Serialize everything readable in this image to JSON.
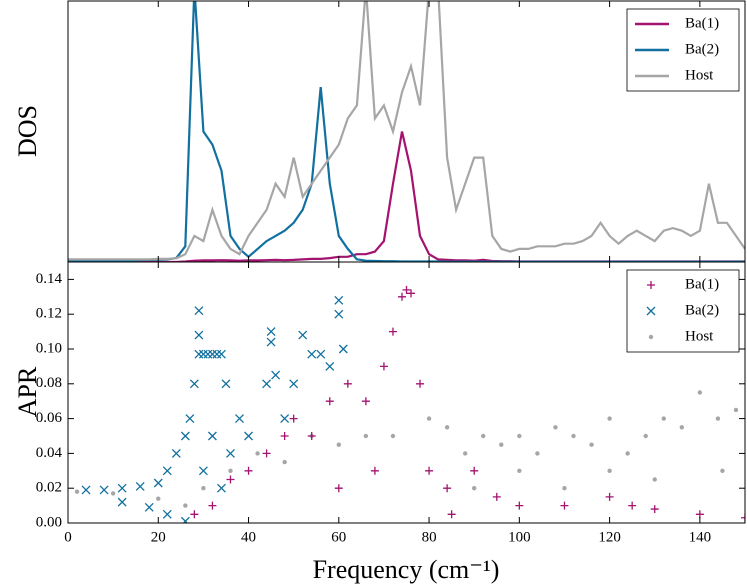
{
  "chart_data": [
    {
      "type": "line",
      "ylabel": "DOS",
      "xlim": [
        0,
        150
      ],
      "ylim": [
        0,
        1
      ],
      "legend": "upper right",
      "x": [
        0,
        2,
        4,
        6,
        8,
        10,
        12,
        14,
        16,
        18,
        20,
        22,
        24,
        26,
        28,
        30,
        32,
        34,
        36,
        38,
        40,
        42,
        44,
        46,
        48,
        50,
        52,
        54,
        56,
        58,
        60,
        62,
        64,
        66,
        68,
        70,
        72,
        74,
        76,
        78,
        80,
        82,
        84,
        86,
        88,
        90,
        92,
        94,
        96,
        98,
        100,
        102,
        104,
        106,
        108,
        110,
        112,
        114,
        116,
        118,
        120,
        122,
        124,
        126,
        128,
        130,
        132,
        134,
        136,
        138,
        140,
        142,
        144,
        146,
        148,
        150
      ],
      "series": [
        {
          "name": "Ba(1)",
          "color": "#a3136f",
          "values": [
            0,
            0,
            0,
            0,
            0,
            0,
            0,
            0,
            0,
            0,
            0,
            0,
            0,
            0.002,
            0.005,
            0.006,
            0.006,
            0.007,
            0.006,
            0.005,
            0.006,
            0.006,
            0.007,
            0.008,
            0.007,
            0.008,
            0.01,
            0.012,
            0.012,
            0.015,
            0.02,
            0.02,
            0.03,
            0.03,
            0.04,
            0.08,
            0.3,
            0.5,
            0.35,
            0.1,
            0.03,
            0.01,
            0.008,
            0.006,
            0.006,
            0.005,
            0.008,
            0.004,
            0.003,
            0.003,
            0.002,
            0.002,
            0.002,
            0.002,
            0.002,
            0.002,
            0.002,
            0.002,
            0.002,
            0.002,
            0.002,
            0.002,
            0.002,
            0.002,
            0.002,
            0.002,
            0.002,
            0.002,
            0.002,
            0.002,
            0.002,
            0.002,
            0.002,
            0.002,
            0.002,
            0.002
          ]
        },
        {
          "name": "Ba(2)",
          "color": "#11709f",
          "values": [
            0.005,
            0.005,
            0.005,
            0.005,
            0.005,
            0.006,
            0.006,
            0.006,
            0.007,
            0.008,
            0.009,
            0.01,
            0.015,
            0.06,
            1.05,
            0.5,
            0.45,
            0.35,
            0.1,
            0.05,
            0.02,
            0.05,
            0.08,
            0.1,
            0.12,
            0.15,
            0.2,
            0.3,
            0.67,
            0.3,
            0.1,
            0.05,
            0.01,
            0.005,
            0.004,
            0.003,
            0.003,
            0.002,
            0.002,
            0.002,
            0.002,
            0.002,
            0.001,
            0.001,
            0.001,
            0.001,
            0.001,
            0.001,
            0.001,
            0.001,
            0.001,
            0.001,
            0.001,
            0.001,
            0.001,
            0.001,
            0.001,
            0.001,
            0.001,
            0.001,
            0.001,
            0.001,
            0.001,
            0.001,
            0.001,
            0.001,
            0.001,
            0.001,
            0.001,
            0.001,
            0.001,
            0.001,
            0.001,
            0.001,
            0.001,
            0.001
          ]
        },
        {
          "name": "Host",
          "color": "#a6a6a6",
          "values": [
            0.01,
            0.01,
            0.01,
            0.01,
            0.01,
            0.01,
            0.01,
            0.01,
            0.01,
            0.01,
            0.012,
            0.012,
            0.014,
            0.03,
            0.1,
            0.08,
            0.2,
            0.1,
            0.05,
            0.03,
            0.1,
            0.15,
            0.2,
            0.3,
            0.25,
            0.4,
            0.25,
            0.3,
            0.35,
            0.4,
            0.45,
            0.55,
            0.6,
            1.05,
            0.55,
            0.6,
            0.5,
            0.65,
            0.75,
            0.6,
            1.05,
            1.05,
            0.4,
            0.2,
            0.3,
            0.4,
            0.4,
            0.1,
            0.05,
            0.04,
            0.05,
            0.05,
            0.06,
            0.06,
            0.06,
            0.07,
            0.07,
            0.08,
            0.1,
            0.15,
            0.1,
            0.07,
            0.1,
            0.12,
            0.1,
            0.08,
            0.12,
            0.13,
            0.12,
            0.1,
            0.12,
            0.3,
            0.15,
            0.15,
            0.1,
            0.05
          ]
        }
      ]
    },
    {
      "type": "scatter",
      "ylabel": "APR",
      "xlabel": "Frequency (cm⁻¹)",
      "xlim": [
        0,
        150
      ],
      "ylim": [
        0,
        0.15
      ],
      "legend": "upper right",
      "xticks": [
        0,
        20,
        40,
        60,
        80,
        100,
        120,
        140
      ],
      "yticks": [
        {
          "value": 0,
          "label": "0.00"
        },
        {
          "value": 0.02,
          "label": "0.02"
        },
        {
          "value": 0.04,
          "label": "0.04"
        },
        {
          "value": 0.06,
          "label": "0.06"
        },
        {
          "value": 0.08,
          "label": "0.08"
        },
        {
          "value": 0.1,
          "label": "0.10"
        },
        {
          "value": 0.12,
          "label": "0.12"
        },
        {
          "value": 0.14,
          "label": "0.14"
        }
      ],
      "series": [
        {
          "name": "Ba(1)",
          "color": "#a3136f",
          "marker": "+",
          "x": [
            28,
            32,
            36,
            40,
            44,
            48,
            50,
            54,
            58,
            62,
            66,
            70,
            72,
            74,
            75,
            76,
            78,
            80,
            84,
            90,
            95,
            100,
            110,
            120,
            125,
            130,
            140,
            150,
            60,
            68,
            85
          ],
          "values": [
            0.005,
            0.01,
            0.025,
            0.03,
            0.04,
            0.05,
            0.06,
            0.05,
            0.07,
            0.08,
            0.07,
            0.09,
            0.11,
            0.13,
            0.134,
            0.132,
            0.08,
            0.03,
            0.02,
            0.03,
            0.015,
            0.01,
            0.01,
            0.015,
            0.01,
            0.008,
            0.005,
            0.003,
            0.02,
            0.03,
            0.005
          ]
        },
        {
          "name": "Ba(2)",
          "color": "#11709f",
          "marker": "x",
          "x": [
            4,
            8,
            12,
            16,
            20,
            22,
            24,
            26,
            27,
            28,
            29,
            29,
            29,
            30,
            31,
            32,
            33,
            34,
            30,
            32,
            34,
            35,
            36,
            38,
            40,
            44,
            45,
            45,
            46,
            48,
            50,
            52,
            54,
            56,
            58,
            60,
            60,
            61,
            12,
            18,
            22,
            26
          ],
          "values": [
            0.019,
            0.019,
            0.02,
            0.021,
            0.023,
            0.03,
            0.04,
            0.05,
            0.06,
            0.08,
            0.097,
            0.122,
            0.108,
            0.097,
            0.097,
            0.097,
            0.097,
            0.097,
            0.03,
            0.05,
            0.02,
            0.08,
            0.04,
            0.06,
            0.05,
            0.08,
            0.104,
            0.11,
            0.085,
            0.06,
            0.08,
            0.108,
            0.097,
            0.097,
            0.09,
            0.128,
            0.12,
            0.1,
            0.012,
            0.009,
            0.005,
            0.001
          ]
        },
        {
          "name": "Host",
          "color": "#a6a6a6",
          "marker": "o",
          "x": [
            2,
            10,
            20,
            26,
            30,
            36,
            42,
            48,
            54,
            60,
            66,
            72,
            80,
            84,
            88,
            92,
            96,
            100,
            104,
            108,
            112,
            116,
            120,
            124,
            128,
            132,
            136,
            140,
            144,
            148,
            90,
            110,
            130,
            145,
            100,
            120
          ],
          "values": [
            0.018,
            0.017,
            0.014,
            0.01,
            0.02,
            0.03,
            0.04,
            0.035,
            0.05,
            0.045,
            0.05,
            0.05,
            0.06,
            0.055,
            0.04,
            0.05,
            0.045,
            0.05,
            0.04,
            0.055,
            0.05,
            0.045,
            0.06,
            0.04,
            0.05,
            0.06,
            0.055,
            0.075,
            0.06,
            0.065,
            0.02,
            0.02,
            0.025,
            0.03,
            0.03,
            0.03
          ]
        }
      ]
    }
  ]
}
